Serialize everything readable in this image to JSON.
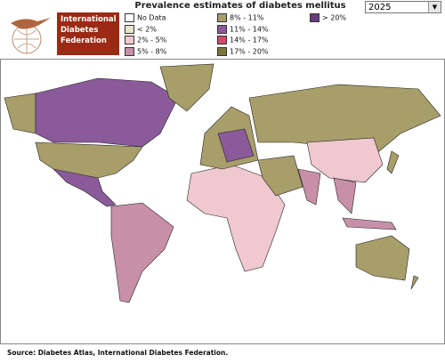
{
  "header": {
    "title": "Prevalence estimates of diabetes mellitus"
  },
  "logo": {
    "lines": [
      "International",
      "Diabetes",
      "Federation"
    ]
  },
  "year_select": {
    "value": "2025"
  },
  "legend": {
    "items": [
      {
        "label": "No Data",
        "color": "#ffffff"
      },
      {
        "label": "< 2%",
        "color": "#e8e4c8"
      },
      {
        "label": "2% - 5%",
        "color": "#f0c8d0"
      },
      {
        "label": "5% - 8%",
        "color": "#c890a8"
      },
      {
        "label": "8% - 11%",
        "color": "#a89e6a"
      },
      {
        "label": "11% - 14%",
        "color": "#8a5a9a"
      },
      {
        "label": "14% - 17%",
        "color": "#d04a6a"
      },
      {
        "label": "17% - 20%",
        "color": "#7a7438"
      },
      {
        "label": "> 20%",
        "color": "#6a3a80"
      }
    ]
  },
  "source": "Source: Diabetes Atlas, International Diabetes Federation."
}
